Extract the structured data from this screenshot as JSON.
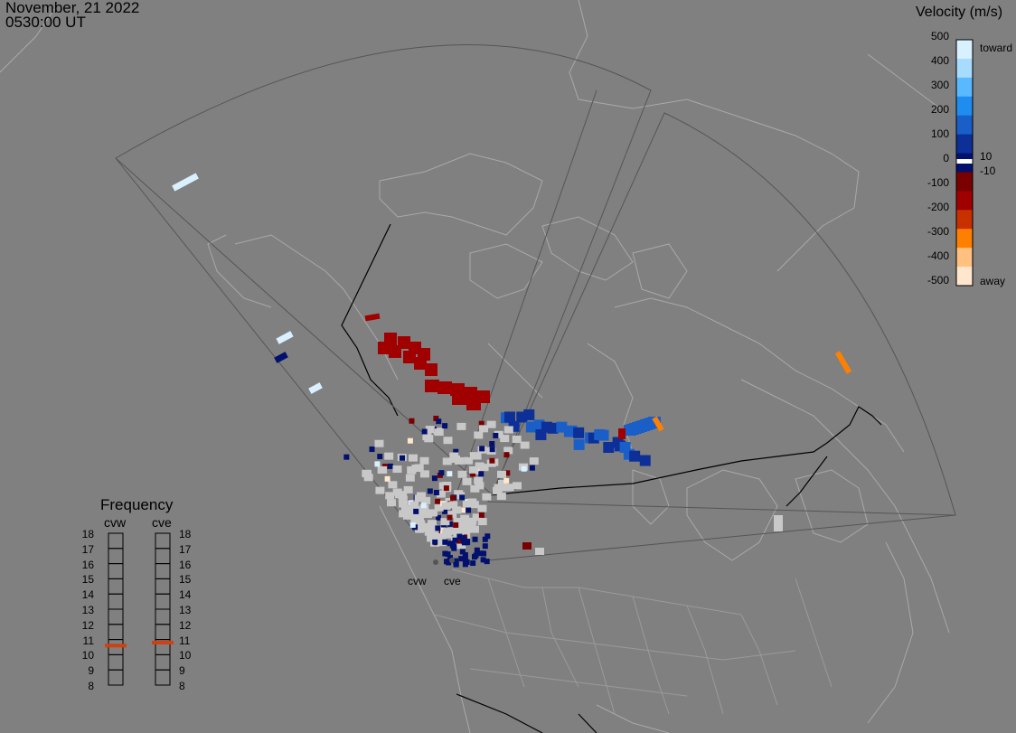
{
  "header": {
    "date": "November, 21 2022",
    "time": "0530:00 UT"
  },
  "velocity_scale": {
    "title": "Velocity (m/s)",
    "ticks": [
      "500",
      "400",
      "300",
      "200",
      "100",
      "0",
      "-100",
      "-200",
      "-300",
      "-400",
      "-500"
    ],
    "small_labels": [
      "10",
      "-10"
    ],
    "toward_label": "toward",
    "away_label": "away",
    "colors": [
      "#d9f0ff",
      "#a8dcff",
      "#5ab8ff",
      "#1f8cf0",
      "#1a5fc8",
      "#0c2f98",
      "#02106e",
      "#7a0000",
      "#a00000",
      "#c83000",
      "#ff8000",
      "#ffc080",
      "#ffe6cc"
    ]
  },
  "frequency": {
    "title": "Frequency",
    "radars": [
      {
        "name": "cvw",
        "freq": 10.6
      },
      {
        "name": "cve",
        "freq": 10.8
      }
    ],
    "ticks": [
      "18",
      "17",
      "16",
      "15",
      "14",
      "13",
      "12",
      "11",
      "10",
      "9",
      "8"
    ]
  },
  "radars": [
    {
      "name": "cvw"
    },
    {
      "name": "cve"
    }
  ],
  "colors": {
    "background": "#808080",
    "coast": "#a9a9a9",
    "fov": "#555555",
    "border_dark": "#000000",
    "ground_scatter": "#c8c8c8"
  }
}
